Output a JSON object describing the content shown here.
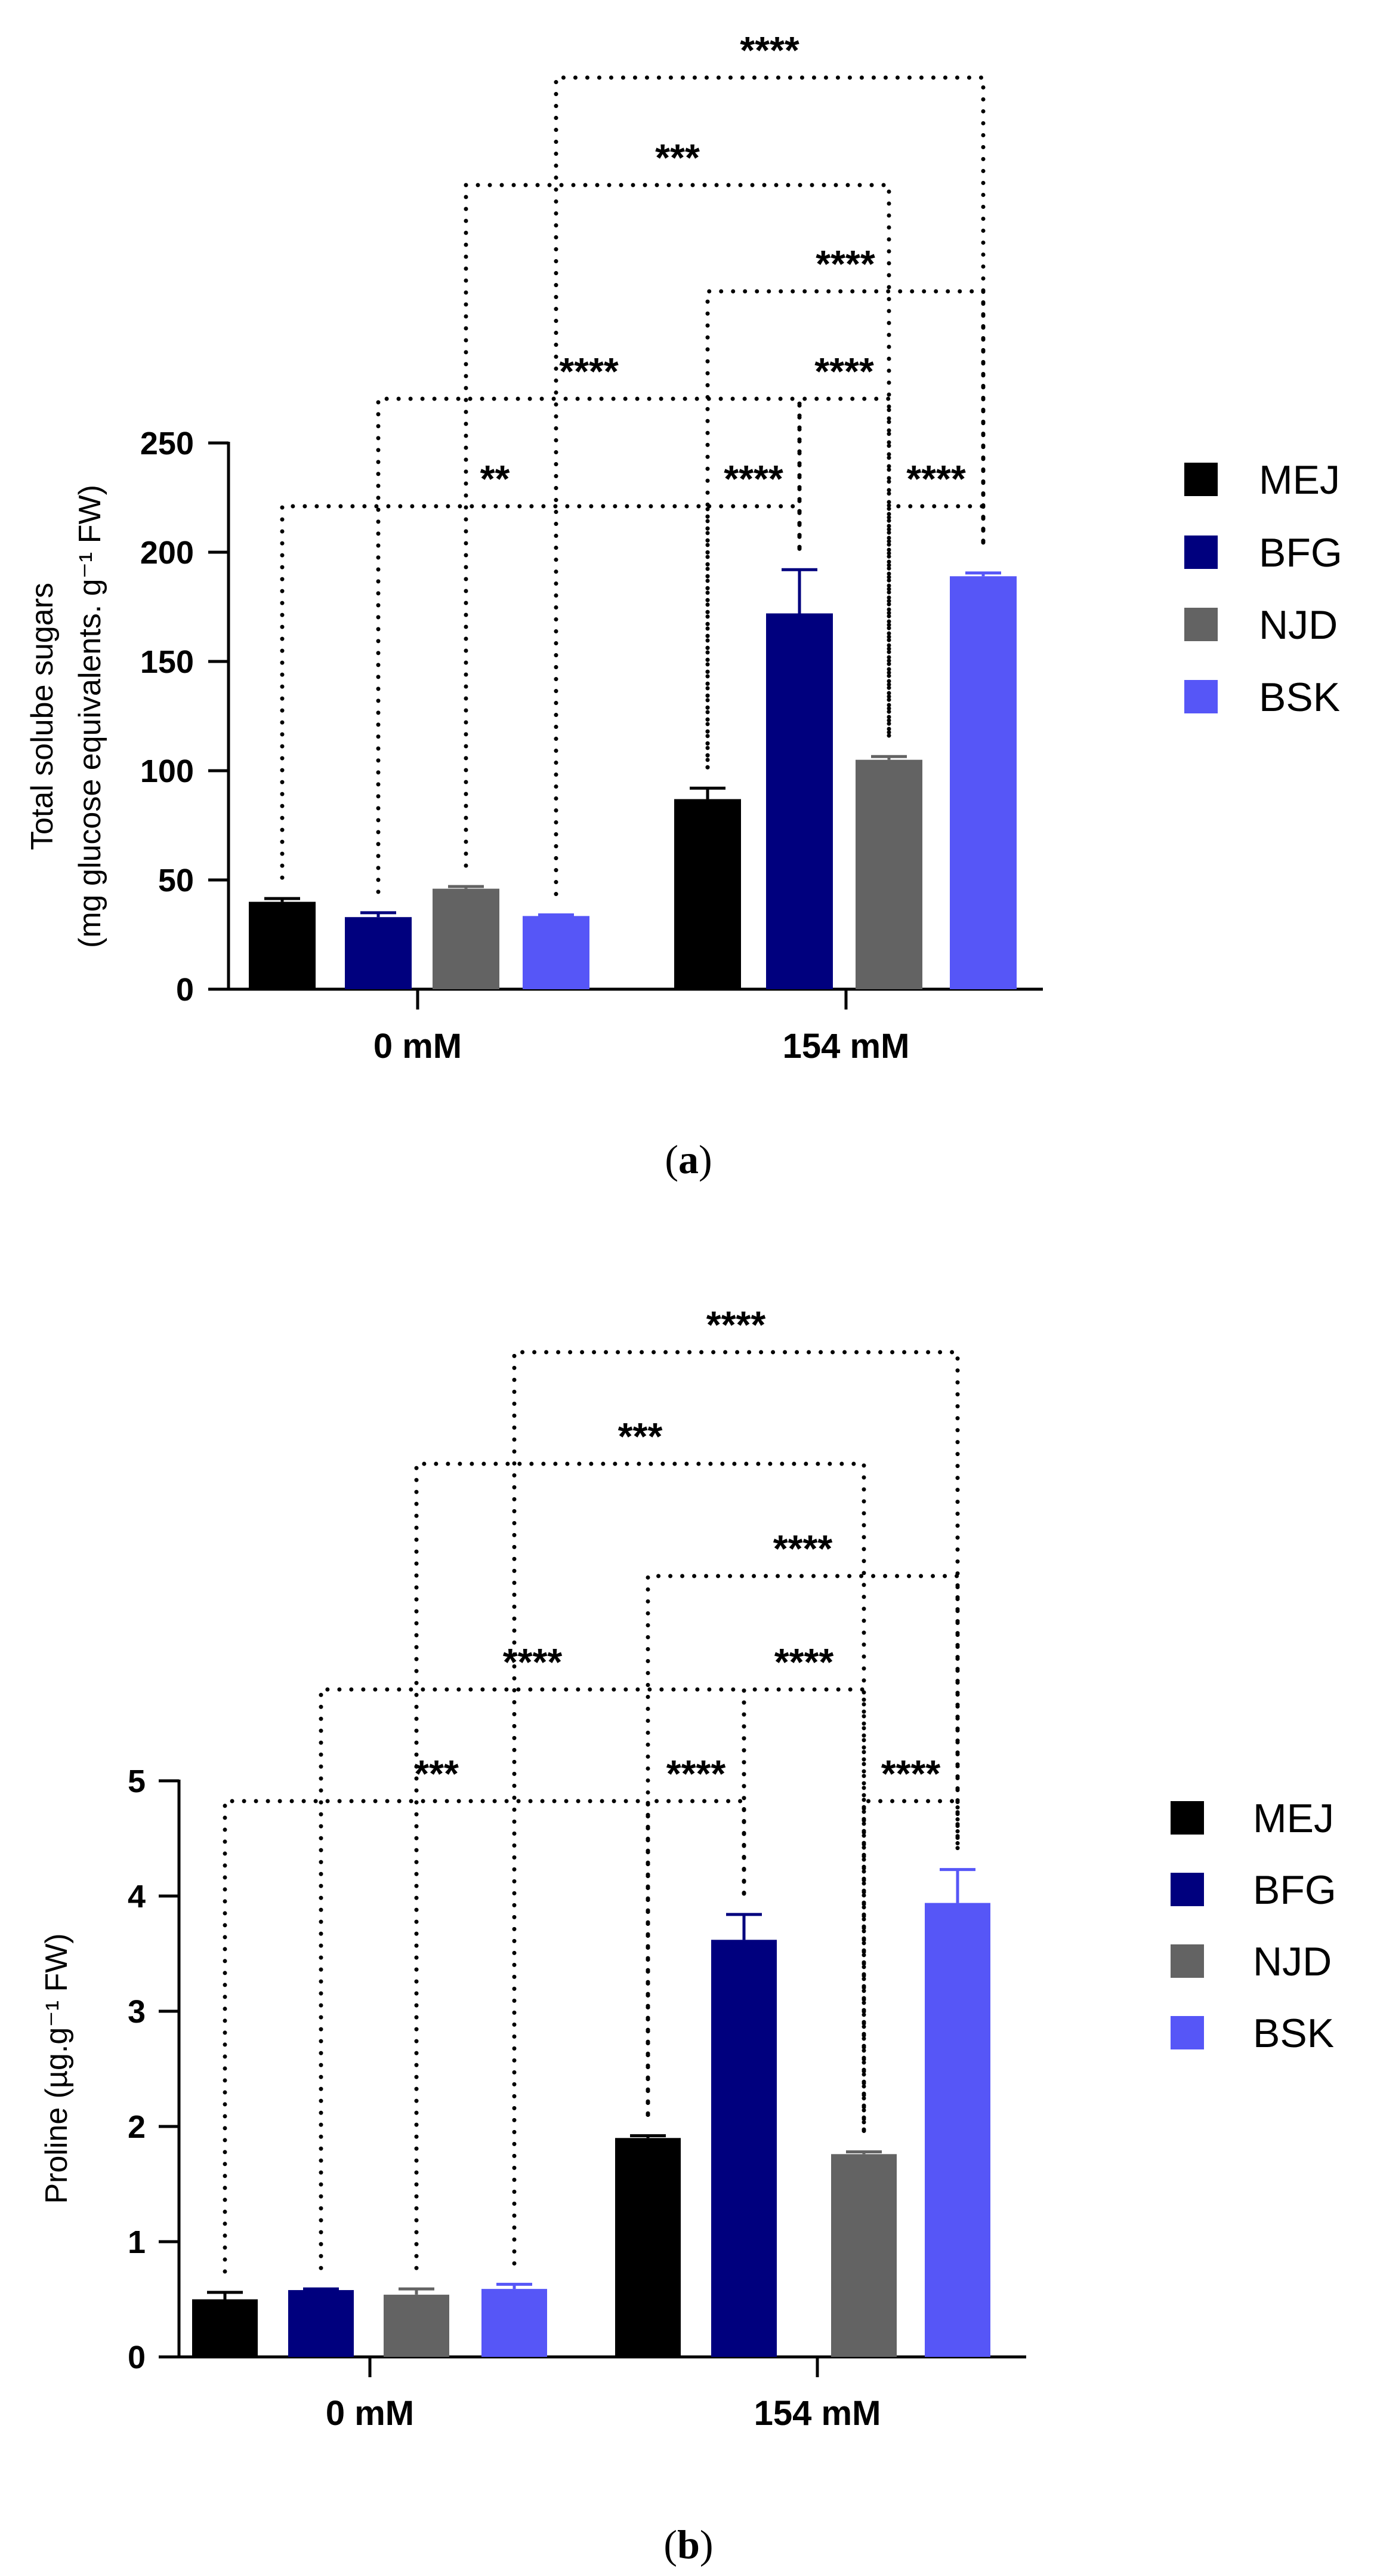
{
  "chart_data": [
    {
      "panel": "a",
      "type": "bar",
      "ylabel_line1": "Total solube sugars",
      "ylabel_line2": "(mg glucose equivalents. g⁻¹ FW)",
      "ylim": [
        0,
        250
      ],
      "yticks": [
        0,
        50,
        100,
        150,
        200,
        250
      ],
      "categories": [
        "0 mM",
        "154 mM"
      ],
      "series": [
        {
          "name": "MEJ",
          "color": "#000000",
          "values": [
            40,
            87
          ],
          "errors": [
            1.5,
            5
          ]
        },
        {
          "name": "BFG",
          "color": "#00007e",
          "values": [
            33,
            172
          ],
          "errors": [
            2,
            20
          ]
        },
        {
          "name": "NJD",
          "color": "#636363",
          "values": [
            46,
            105
          ],
          "errors": [
            1,
            1.5
          ]
        },
        {
          "name": "BSK",
          "color": "#5656f7",
          "values": [
            33.5,
            189
          ],
          "errors": [
            0.5,
            1.5
          ]
        }
      ],
      "significance": [
        {
          "from": [
            0,
            0
          ],
          "to": [
            1,
            0
          ],
          "label": "**",
          "level": 1
        },
        {
          "from": [
            1,
            0
          ],
          "to": [
            1,
            1
          ],
          "label": "****",
          "level": 1
        },
        {
          "from": [
            1,
            2
          ],
          "to": [
            1,
            3
          ],
          "label": "****",
          "level": 1
        },
        {
          "from": [
            0,
            1
          ],
          "to": [
            1,
            1
          ],
          "label": "****",
          "level": 2
        },
        {
          "from": [
            1,
            1
          ],
          "to": [
            1,
            2
          ],
          "label": "****",
          "level": 2
        },
        {
          "from": [
            1,
            0
          ],
          "to": [
            1,
            3
          ],
          "label": "****",
          "level": 3
        },
        {
          "from": [
            0,
            2
          ],
          "to": [
            1,
            2
          ],
          "label": "***",
          "level": 4
        },
        {
          "from": [
            0,
            3
          ],
          "to": [
            1,
            3
          ],
          "label": "****",
          "level": 5
        }
      ],
      "caption_open": "(",
      "caption_letter": "a",
      "caption_close": ")"
    },
    {
      "panel": "b",
      "type": "bar",
      "ylabel_line1": "Proline (µg.g⁻¹ FW)",
      "ylabel_line2": "",
      "ylim": [
        0,
        5
      ],
      "yticks": [
        0,
        1,
        2,
        3,
        4,
        5
      ],
      "categories": [
        "0 mM",
        "154 mM"
      ],
      "series": [
        {
          "name": "MEJ",
          "color": "#000000",
          "values": [
            0.5,
            1.9
          ],
          "errors": [
            0.06,
            0.02
          ]
        },
        {
          "name": "BFG",
          "color": "#00007e",
          "values": [
            0.58,
            3.62
          ],
          "errors": [
            0.01,
            0.22
          ]
        },
        {
          "name": "NJD",
          "color": "#636363",
          "values": [
            0.54,
            1.76
          ],
          "errors": [
            0.05,
            0.02
          ]
        },
        {
          "name": "BSK",
          "color": "#5656f7",
          "values": [
            0.59,
            3.94
          ],
          "errors": [
            0.04,
            0.29
          ]
        }
      ],
      "significance": [
        {
          "from": [
            0,
            0
          ],
          "to": [
            1,
            0
          ],
          "label": "***",
          "level": 1
        },
        {
          "from": [
            1,
            0
          ],
          "to": [
            1,
            1
          ],
          "label": "****",
          "level": 1
        },
        {
          "from": [
            1,
            2
          ],
          "to": [
            1,
            3
          ],
          "label": "****",
          "level": 1
        },
        {
          "from": [
            0,
            1
          ],
          "to": [
            1,
            1
          ],
          "label": "****",
          "level": 2
        },
        {
          "from": [
            1,
            1
          ],
          "to": [
            1,
            2
          ],
          "label": "****",
          "level": 2
        },
        {
          "from": [
            1,
            0
          ],
          "to": [
            1,
            3
          ],
          "label": "****",
          "level": 3
        },
        {
          "from": [
            0,
            2
          ],
          "to": [
            1,
            2
          ],
          "label": "***",
          "level": 4
        },
        {
          "from": [
            0,
            3
          ],
          "to": [
            1,
            3
          ],
          "label": "****",
          "level": 5
        }
      ],
      "caption_open": "(",
      "caption_letter": "b",
      "caption_close": ")"
    }
  ]
}
